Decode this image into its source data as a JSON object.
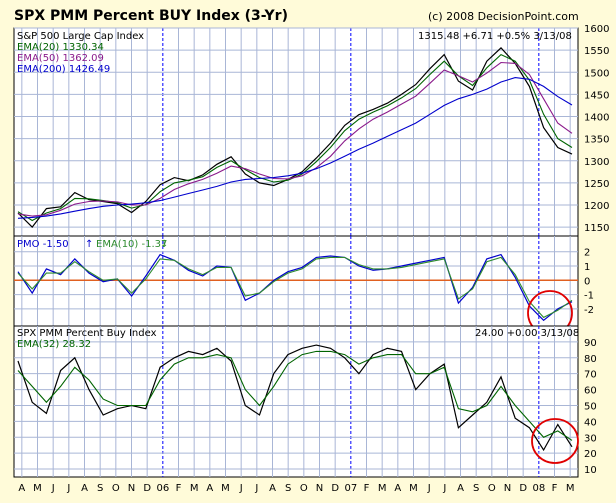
{
  "header": {
    "title": "SPX PMM Percent BUY Index (3-Yr)",
    "copyright": "(c) 2008 DecisionPoint.com"
  },
  "colors": {
    "background": "#fffbd9",
    "plot_bg": "#ffffff",
    "grid": "#a9b6d6",
    "year_divider": "#0000ff",
    "price": "#000000",
    "ema20": "#006400",
    "ema50": "#8b1a8b",
    "ema200": "#0000cd",
    "pmo": "#0000cd",
    "pmo_ema": "#2e8b2e",
    "zero_line": "#e06020",
    "circle": "#e00000"
  },
  "chart_data": [
    {
      "panel": "price",
      "type": "line",
      "title": "S&P 500 Large Cap Index",
      "last_values": "1315.48  +6.71  +0.5%  3/13/08",
      "legend": [
        "EMA(20) 1330.34",
        "EMA(50) 1362.09",
        "EMA(200) 1426.49"
      ],
      "ylim": [
        1130,
        1600
      ],
      "yticks": [
        1150,
        1200,
        1250,
        1300,
        1350,
        1400,
        1450,
        1500,
        1550,
        1600
      ],
      "x": [
        0,
        1,
        2,
        3,
        4,
        5,
        6,
        7,
        8,
        9,
        10,
        11,
        12,
        13,
        14,
        15,
        16,
        17,
        18,
        19,
        20,
        21,
        22,
        23,
        24,
        25,
        26,
        27,
        28,
        29,
        30,
        31,
        32,
        33,
        34,
        35,
        36,
        37,
        38,
        39
      ],
      "series": [
        {
          "name": "SPX",
          "values": [
            1182,
            1150,
            1192,
            1196,
            1228,
            1212,
            1208,
            1203,
            1183,
            1208,
            1246,
            1262,
            1255,
            1268,
            1292,
            1309,
            1270,
            1250,
            1244,
            1258,
            1275,
            1306,
            1340,
            1380,
            1404,
            1416,
            1430,
            1450,
            1472,
            1508,
            1540,
            1480,
            1460,
            1525,
            1555,
            1520,
            1468,
            1375,
            1330,
            1315
          ]
        },
        {
          "name": "EMA(20)",
          "values": [
            1185,
            1165,
            1182,
            1192,
            1215,
            1214,
            1210,
            1205,
            1193,
            1201,
            1230,
            1250,
            1256,
            1264,
            1285,
            1300,
            1280,
            1262,
            1252,
            1256,
            1270,
            1298,
            1330,
            1368,
            1394,
            1410,
            1424,
            1442,
            1463,
            1495,
            1525,
            1492,
            1470,
            1510,
            1540,
            1525,
            1482,
            1405,
            1350,
            1330
          ]
        },
        {
          "name": "EMA(50)",
          "values": [
            1180,
            1175,
            1178,
            1188,
            1202,
            1208,
            1209,
            1207,
            1200,
            1200,
            1215,
            1235,
            1248,
            1258,
            1272,
            1288,
            1282,
            1270,
            1260,
            1259,
            1266,
            1284,
            1310,
            1345,
            1372,
            1394,
            1410,
            1428,
            1446,
            1475,
            1505,
            1492,
            1478,
            1498,
            1522,
            1520,
            1495,
            1440,
            1385,
            1362
          ]
        },
        {
          "name": "EMA(200)",
          "values": [
            1170,
            1172,
            1175,
            1180,
            1186,
            1192,
            1197,
            1200,
            1202,
            1205,
            1210,
            1218,
            1226,
            1234,
            1242,
            1252,
            1258,
            1260,
            1262,
            1266,
            1272,
            1282,
            1295,
            1310,
            1326,
            1340,
            1355,
            1370,
            1385,
            1405,
            1425,
            1440,
            1450,
            1462,
            1478,
            1488,
            1484,
            1468,
            1445,
            1426
          ]
        }
      ]
    },
    {
      "panel": "pmo",
      "type": "line",
      "title": "PMO -1.50",
      "legend": [
        "EMA(10) -1.37"
      ],
      "ylim": [
        -3.2,
        3.1
      ],
      "yticks": [
        -2,
        -1,
        0,
        1,
        2
      ],
      "x": [
        0,
        1,
        2,
        3,
        4,
        5,
        6,
        7,
        8,
        9,
        10,
        11,
        12,
        13,
        14,
        15,
        16,
        17,
        18,
        19,
        20,
        21,
        22,
        23,
        24,
        25,
        26,
        27,
        28,
        29,
        30,
        31,
        32,
        33,
        34,
        35,
        36,
        37,
        38,
        39
      ],
      "series": [
        {
          "name": "PMO",
          "values": [
            0.6,
            -0.9,
            0.8,
            0.4,
            1.5,
            0.5,
            -0.1,
            0.1,
            -1.1,
            0.3,
            1.8,
            1.4,
            0.7,
            0.3,
            1.0,
            0.9,
            -1.4,
            -0.9,
            0.0,
            0.6,
            0.9,
            1.6,
            1.7,
            1.6,
            1.0,
            0.7,
            0.8,
            1.0,
            1.2,
            1.4,
            1.6,
            -1.6,
            -0.5,
            1.5,
            1.8,
            0.2,
            -1.8,
            -2.8,
            -2.0,
            -1.5
          ]
        },
        {
          "name": "EMA(10)",
          "values": [
            0.5,
            -0.6,
            0.5,
            0.5,
            1.3,
            0.6,
            0.0,
            0.1,
            -0.9,
            0.1,
            1.5,
            1.4,
            0.8,
            0.4,
            0.9,
            0.9,
            -1.1,
            -0.9,
            -0.1,
            0.5,
            0.8,
            1.5,
            1.6,
            1.6,
            1.1,
            0.8,
            0.8,
            0.9,
            1.1,
            1.3,
            1.5,
            -1.3,
            -0.6,
            1.3,
            1.6,
            0.4,
            -1.5,
            -2.6,
            -2.1,
            -1.4
          ]
        }
      ]
    },
    {
      "panel": "percent_buy",
      "type": "line",
      "title": "SPX PMM Percent Buy Index",
      "last_values": "24.00  +0.00  3/13/08",
      "legend": [
        "EMA(32) 28.32"
      ],
      "ylim": [
        5,
        100
      ],
      "yticks": [
        10,
        20,
        30,
        40,
        50,
        60,
        70,
        80,
        90
      ],
      "x": [
        0,
        1,
        2,
        3,
        4,
        5,
        6,
        7,
        8,
        9,
        10,
        11,
        12,
        13,
        14,
        15,
        16,
        17,
        18,
        19,
        20,
        21,
        22,
        23,
        24,
        25,
        26,
        27,
        28,
        29,
        30,
        31,
        32,
        33,
        34,
        35,
        36,
        37,
        38,
        39
      ],
      "series": [
        {
          "name": "Percent Buy",
          "values": [
            78,
            52,
            45,
            72,
            80,
            60,
            44,
            48,
            50,
            48,
            74,
            80,
            84,
            82,
            86,
            78,
            50,
            44,
            70,
            82,
            86,
            88,
            86,
            80,
            70,
            82,
            86,
            84,
            60,
            70,
            76,
            36,
            44,
            52,
            68,
            42,
            36,
            22,
            38,
            24
          ]
        },
        {
          "name": "EMA(32)",
          "values": [
            72,
            62,
            52,
            62,
            74,
            66,
            54,
            50,
            50,
            50,
            66,
            76,
            80,
            80,
            82,
            80,
            60,
            50,
            62,
            76,
            82,
            84,
            84,
            82,
            76,
            80,
            82,
            82,
            70,
            70,
            74,
            48,
            46,
            50,
            62,
            50,
            40,
            30,
            34,
            28
          ]
        }
      ]
    }
  ],
  "x_axis": {
    "months": [
      "A",
      "M",
      "J",
      "J",
      "A",
      "S",
      "O",
      "N",
      "D",
      "06",
      "F",
      "M",
      "A",
      "M",
      "J",
      "J",
      "A",
      "S",
      "O",
      "N",
      "D",
      "07",
      "F",
      "M",
      "A",
      "M",
      "J",
      "J",
      "A",
      "S",
      "O",
      "N",
      "D",
      "08",
      "F",
      "M"
    ],
    "year_markers": [
      "06",
      "07",
      "08"
    ]
  }
}
